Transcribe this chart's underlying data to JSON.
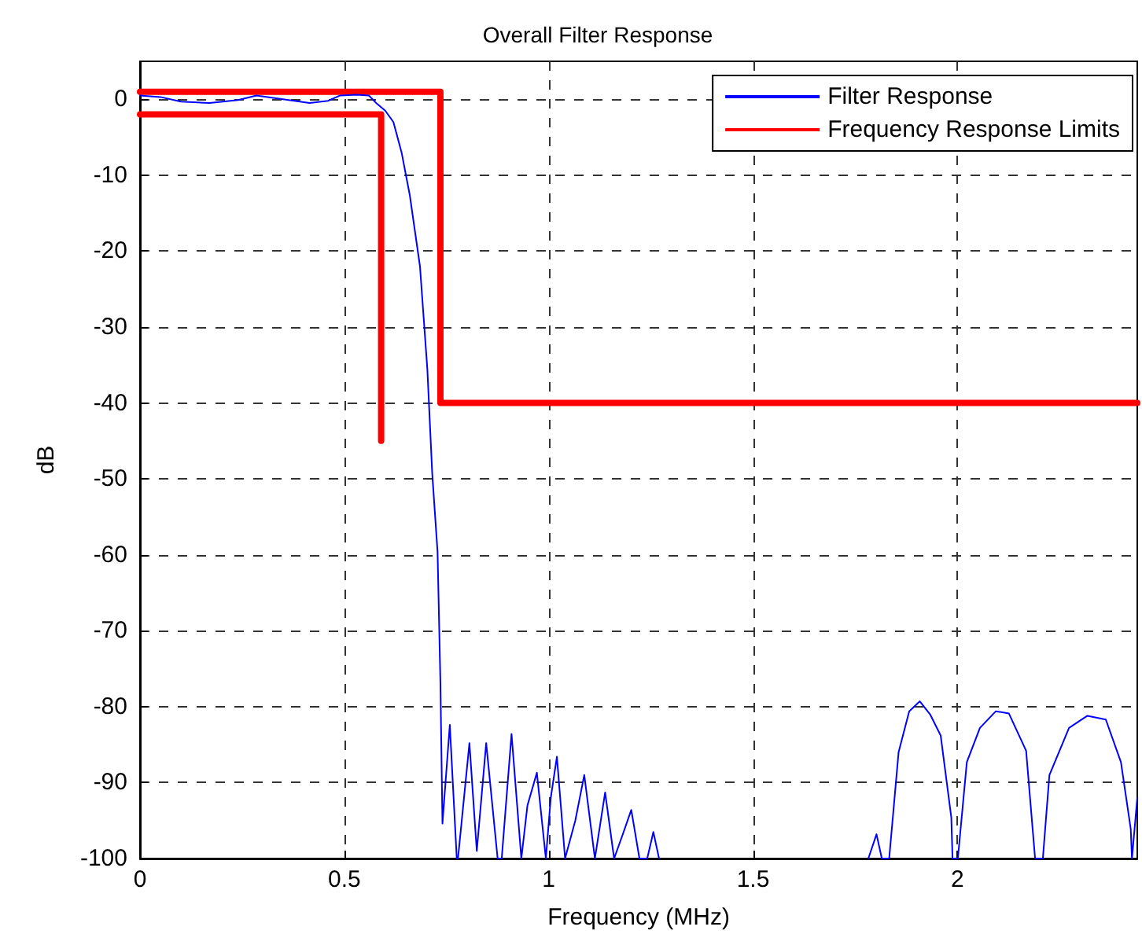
{
  "chart_data": {
    "type": "line",
    "title": "Overall Filter Response",
    "xlabel": "Frequency (MHz)",
    "ylabel": "dB",
    "xlim": [
      0,
      2.44
    ],
    "xticks": [
      0,
      0.5,
      1,
      1.5,
      2
    ],
    "ylim": [
      -100,
      5
    ],
    "yticks": [
      -100,
      -90,
      -80,
      -70,
      -60,
      -50,
      -40,
      -30,
      -20,
      -10,
      0
    ],
    "grid": true,
    "legend": "top right",
    "marker": "none",
    "series": [
      {
        "name": "Filter Response",
        "color": "#0000ff",
        "line_style": "solid",
        "x": [
          0,
          0.05,
          0.1,
          0.17,
          0.24,
          0.285,
          0.35,
          0.415,
          0.46,
          0.49,
          0.53,
          0.56,
          0.58,
          0.6,
          0.62,
          0.64,
          0.66,
          0.685,
          0.703,
          0.715,
          0.728,
          0.735,
          0.74,
          0.758,
          0.775,
          0.778,
          0.806,
          0.824,
          0.847,
          0.875,
          0.885,
          0.909,
          0.933,
          0.948,
          0.971,
          0.993,
          1.005,
          1.02,
          1.04,
          1.065,
          1.087,
          1.113,
          1.138,
          1.16,
          1.18,
          1.202,
          1.222,
          1.241,
          1.256,
          1.27,
          1.5,
          1.782,
          1.802,
          1.815,
          1.833,
          1.856,
          1.882,
          1.908,
          1.933,
          1.959,
          1.985,
          1.988,
          2.001,
          2.023,
          2.055,
          2.094,
          2.126,
          2.168,
          2.19,
          2.209,
          2.225,
          2.273,
          2.318,
          2.363,
          2.4,
          2.424,
          2.427,
          2.44
        ],
        "values": [
          0.5,
          0.3,
          -0.3,
          -0.5,
          -0.1,
          0.5,
          0,
          -0.5,
          -0.2,
          0.5,
          0.6,
          0.5,
          -0.6,
          -1.5,
          -3,
          -7,
          -12.6,
          -22,
          -35.5,
          -49.3,
          -59.6,
          -76.8,
          -95.4,
          -82.4,
          -100,
          -100,
          -84.8,
          -99,
          -84.8,
          -100,
          -100,
          -83.6,
          -100,
          -93,
          -88.7,
          -100,
          -92,
          -86.6,
          -100,
          -95,
          -89,
          -100,
          -91.3,
          -100,
          -97,
          -93.6,
          -100,
          -100,
          -96.5,
          -100,
          null,
          -100,
          -96.8,
          -100,
          -100,
          -86,
          -80.6,
          -79.3,
          -81,
          -83.8,
          -94.6,
          -100,
          -100,
          -87.3,
          -82.8,
          -80.6,
          -80.9,
          -85.8,
          -100,
          -100,
          -89,
          -82.8,
          -81.2,
          -81.7,
          -87.3,
          -96.1,
          -100,
          -92
        ]
      },
      {
        "name": "Frequency Response Limits",
        "color": "#ff0000",
        "line_style": "solid",
        "x": [
          0,
          0.735,
          0.735,
          2.44
        ],
        "values": [
          1,
          1,
          -40,
          -40
        ]
      },
      {
        "color": "#ff0000",
        "line_style": "solid",
        "x": [
          0,
          0.59,
          0.59
        ],
        "values": [
          -2,
          -2,
          -45
        ]
      }
    ]
  }
}
